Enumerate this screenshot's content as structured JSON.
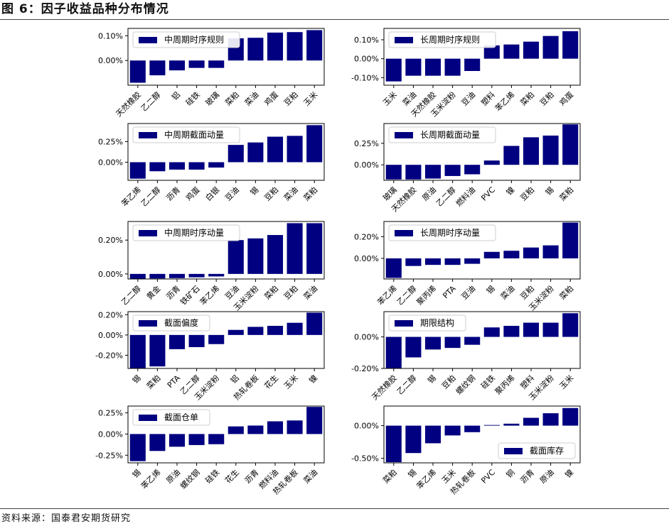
{
  "header": {
    "title": "图 6：因子收益品种分布情况"
  },
  "footer": {
    "source": "资料来源：国泰君安期货研究"
  },
  "colors": {
    "bar": "#000080",
    "axis": "#000000",
    "text": "#000000"
  },
  "chart_data": [
    {
      "type": "bar",
      "legend": "中周期时序规则",
      "legend_position": "upper left",
      "categories": [
        "天然橡胶",
        "乙二醇",
        "铝",
        "硅铁",
        "玻璃",
        "菜粕",
        "菜油",
        "鸡蛋",
        "豆粕",
        "玉米"
      ],
      "values": [
        -0.09,
        -0.06,
        -0.04,
        -0.03,
        -0.03,
        0.09,
        0.092,
        0.113,
        0.115,
        0.123
      ],
      "ylim": [
        -0.1,
        0.13
      ],
      "yticks": [
        0.1,
        0.0
      ],
      "ytick_labels": [
        "0.10%",
        "0.00%"
      ]
    },
    {
      "type": "bar",
      "legend": "长周期时序规则",
      "legend_position": "upper left",
      "categories": [
        "玉米",
        "菜油",
        "天然橡胶",
        "玉米淀粉",
        "豆油",
        "塑料",
        "苯乙烯",
        "菜粕",
        "豆粕",
        "鸡蛋"
      ],
      "values": [
        -0.12,
        -0.09,
        -0.09,
        -0.09,
        -0.065,
        0.07,
        0.075,
        0.09,
        0.12,
        0.145
      ],
      "ylim": [
        -0.14,
        0.16
      ],
      "yticks": [
        0.1,
        0.0,
        -0.1
      ],
      "ytick_labels": [
        "0.10%",
        "0.00%",
        "-0.10%"
      ]
    },
    {
      "type": "bar",
      "legend": "中周期截面动量",
      "legend_position": "upper left",
      "categories": [
        "苯乙烯",
        "乙二醇",
        "沥青",
        "鸡蛋",
        "白银",
        "豆油",
        "锡",
        "豆粕",
        "菜油",
        "菜粕"
      ],
      "values": [
        -0.2,
        -0.11,
        -0.09,
        -0.09,
        -0.065,
        0.21,
        0.24,
        0.31,
        0.32,
        0.45
      ],
      "ylim": [
        -0.22,
        0.47
      ],
      "yticks": [
        0.25,
        0.0
      ],
      "ytick_labels": [
        "0.25%",
        "0.00%"
      ]
    },
    {
      "type": "bar",
      "legend": "长周期截面动量",
      "legend_position": "upper left",
      "categories": [
        "玻璃",
        "天然橡胶",
        "原油",
        "乙二醇",
        "燃料油",
        "PVC",
        "镍",
        "豆粕",
        "锡",
        "菜粕"
      ],
      "values": [
        -0.17,
        -0.17,
        -0.16,
        -0.13,
        -0.11,
        0.05,
        0.22,
        0.32,
        0.34,
        0.47
      ],
      "ylim": [
        -0.18,
        0.48
      ],
      "yticks": [
        0.25,
        0.0
      ],
      "ytick_labels": [
        "0.25%",
        "0.00%"
      ]
    },
    {
      "type": "bar",
      "legend": "中周期时序动量",
      "legend_position": "upper left",
      "categories": [
        "乙二醇",
        "黄金",
        "沥青",
        "铁矿石",
        "苯乙烯",
        "豆油",
        "玉米淀粉",
        "菜粕",
        "豆粕",
        "菜油"
      ],
      "values": [
        -0.03,
        -0.027,
        -0.025,
        -0.02,
        -0.015,
        0.2,
        0.21,
        0.23,
        0.3,
        0.3
      ],
      "ylim": [
        -0.03,
        0.31
      ],
      "yticks": [
        0.2,
        0.0
      ],
      "ytick_labels": [
        "0.20%",
        "0.00%"
      ]
    },
    {
      "type": "bar",
      "legend": "长周期时序动量",
      "legend_position": "upper left",
      "categories": [
        "苯乙烯",
        "乙二醇",
        "聚丙烯",
        "PTA",
        "豆油",
        "锡",
        "菜油",
        "豆粕",
        "玉米淀粉",
        "菜粕"
      ],
      "values": [
        -0.18,
        -0.07,
        -0.06,
        -0.06,
        -0.05,
        0.06,
        0.07,
        0.1,
        0.12,
        0.33
      ],
      "ylim": [
        -0.19,
        0.34
      ],
      "yticks": [
        0.2,
        0.0
      ],
      "ytick_labels": [
        "0.20%",
        "0.00%"
      ]
    },
    {
      "type": "bar",
      "legend": "截面偏度",
      "legend_position": "upper left",
      "categories": [
        "锡",
        "菜粕",
        "PTA",
        "乙二醇",
        "玉米淀粉",
        "铝",
        "热轧卷板",
        "花生",
        "玉米",
        "镍"
      ],
      "values": [
        -0.33,
        -0.31,
        -0.14,
        -0.12,
        -0.09,
        0.05,
        0.08,
        0.09,
        0.12,
        0.22
      ],
      "ylim": [
        -0.33,
        0.23
      ],
      "yticks": [
        0.2,
        0.0,
        -0.2
      ],
      "ytick_labels": [
        "0.20%",
        "0.00%",
        "-0.20%"
      ]
    },
    {
      "type": "bar",
      "legend": "期限结构",
      "legend_position": "upper left",
      "categories": [
        "天然橡胶",
        "乙二醇",
        "锡",
        "豆粕",
        "螺纹钢",
        "硅铁",
        "聚丙烯",
        "塑料",
        "玉米淀粉",
        "玉米"
      ],
      "values": [
        -0.2,
        -0.13,
        -0.08,
        -0.07,
        -0.05,
        0.06,
        0.07,
        0.09,
        0.09,
        0.15
      ],
      "ylim": [
        -0.2,
        0.16
      ],
      "yticks": [
        0.0,
        -0.2
      ],
      "ytick_labels": [
        "0.00%",
        "-0.20%"
      ]
    },
    {
      "type": "bar",
      "legend": "截面仓单",
      "legend_position": "upper left",
      "categories": [
        "锡",
        "苯乙烯",
        "原油",
        "螺纹钢",
        "硅铁",
        "花生",
        "沥青",
        "燃料油",
        "热轧卷板",
        "菜油"
      ],
      "values": [
        -0.32,
        -0.2,
        -0.15,
        -0.13,
        -0.12,
        0.09,
        0.1,
        0.15,
        0.16,
        0.32
      ],
      "ylim": [
        -0.34,
        0.33
      ],
      "yticks": [
        0.25,
        0.0,
        -0.25
      ],
      "ytick_labels": [
        "0.25%",
        "0.00%",
        "-0.25%"
      ]
    },
    {
      "type": "bar",
      "legend": "截面库存",
      "legend_position": "lower right",
      "categories": [
        "菜粕",
        "锡",
        "苯乙烯",
        "玉米",
        "热轧卷板",
        "PVC",
        "铜",
        "沥青",
        "原油",
        "镍"
      ],
      "values": [
        -0.56,
        -0.42,
        -0.27,
        -0.15,
        -0.1,
        0.01,
        0.03,
        0.12,
        0.19,
        0.27
      ],
      "ylim": [
        -0.57,
        0.3
      ],
      "yticks": [
        0.0,
        -0.5
      ],
      "ytick_labels": [
        "0.00%",
        "-0.50%"
      ]
    }
  ]
}
